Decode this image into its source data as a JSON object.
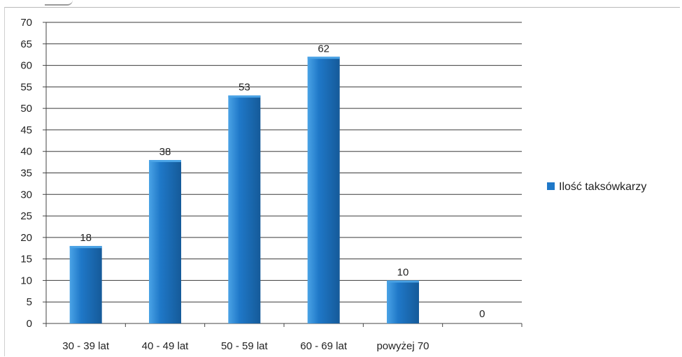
{
  "chart_data": {
    "type": "bar",
    "categories": [
      "30 - 39 lat",
      "40 - 49 lat",
      "50 - 59 lat",
      "60 - 69 lat",
      "powyżej 70",
      ""
    ],
    "series": [
      {
        "name": "Ilość taksówkarzy",
        "values": [
          18,
          38,
          53,
          62,
          10,
          0
        ]
      }
    ],
    "data_labels": [
      "18",
      "38",
      "53",
      "62",
      "10",
      "0"
    ],
    "y_ticks": [
      "0",
      "5",
      "10",
      "15",
      "20",
      "25",
      "30",
      "35",
      "40",
      "45",
      "50",
      "55",
      "60",
      "65",
      "70"
    ],
    "ylim": [
      0,
      70
    ],
    "grid": true,
    "legend_position": "right",
    "bar_color": "#1f78c8",
    "bar_color_light": "#4aa3e6",
    "bar_color_dark": "#155a99"
  }
}
